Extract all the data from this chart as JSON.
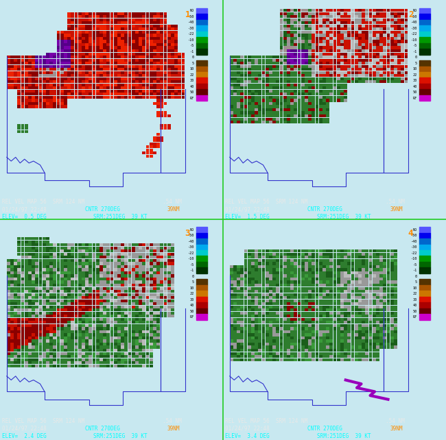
{
  "background_color": "#c8e8f0",
  "panel_bg": "#c8e8f0",
  "divider_color": "#22cc22",
  "text_color_white": "#e8e8e8",
  "text_color_cyan": "#00ffff",
  "text_color_orange": "#ff8c00",
  "text_color_black": "#000000",
  "map_outline_color": "#3333cc",
  "elevs": [
    "0.5",
    "1.5",
    "2.4",
    "3.4"
  ],
  "panel_numbers": [
    "1",
    "2",
    "3",
    "4"
  ],
  "colorbar_labels": [
    "ND",
    "-50",
    "-40",
    "-30",
    "-22",
    "-10",
    "-5",
    "-1",
    "0",
    "5",
    "10",
    "22",
    "30",
    "40",
    "50",
    "RF"
  ],
  "colorbar_colors_hex": [
    "#5555ff",
    "#0000ee",
    "#0066cc",
    "#00aaee",
    "#00cccc",
    "#009900",
    "#006600",
    "#003300",
    "#111111",
    "#553300",
    "#aa5500",
    "#cc7700",
    "#dd1100",
    "#aa0000",
    "#660000",
    "#cc00cc"
  ],
  "vel_palette": {
    "dark_red": "#8B0000",
    "med_red": "#cc1100",
    "bright_red": "#ee2200",
    "dark_green": "#1a5e1a",
    "med_green": "#2e7d2e",
    "bright_green": "#3a9a3a",
    "gray": "#999999",
    "light_gray": "#bbbbbb",
    "purple": "#7700aa",
    "dark_purple": "#550088",
    "tan_gray": "#a09090"
  }
}
